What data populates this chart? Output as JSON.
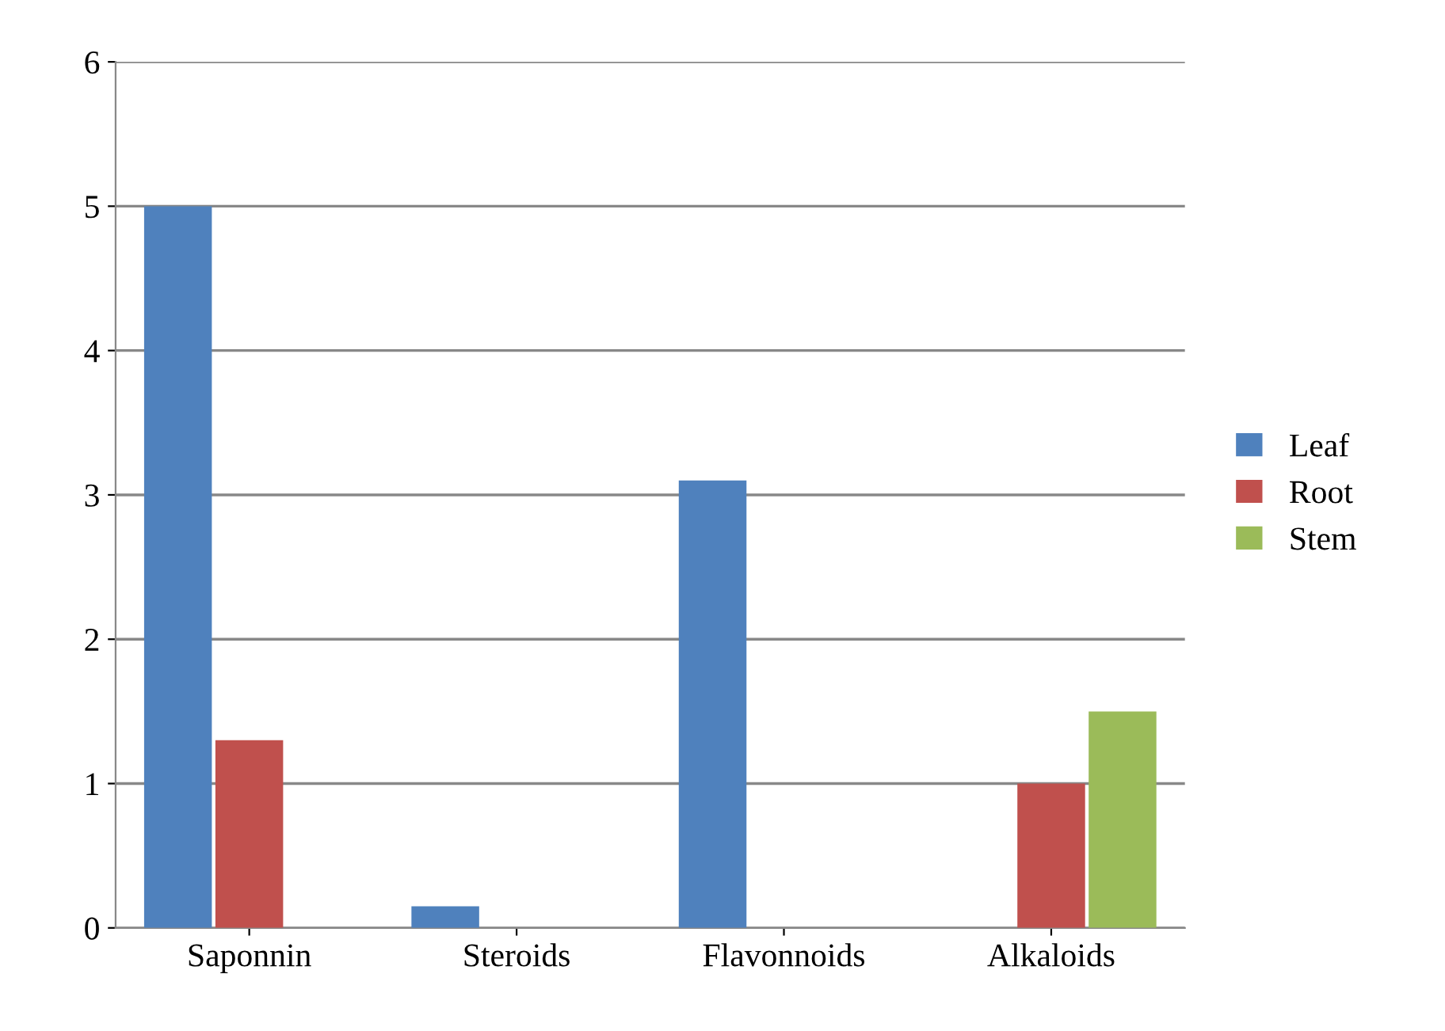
{
  "chart_data": {
    "type": "bar",
    "categories": [
      "Saponnin",
      "Steroids",
      "Flavonnoids",
      "Alkaloids"
    ],
    "series": [
      {
        "name": "Leaf",
        "color": "#4f81bd",
        "values": [
          5.0,
          0.15,
          3.1,
          0
        ]
      },
      {
        "name": "Root",
        "color": "#c0504d",
        "values": [
          1.3,
          0,
          0,
          1.0
        ]
      },
      {
        "name": "Stem",
        "color": "#9bbb59",
        "values": [
          0,
          0,
          0,
          1.5
        ]
      }
    ],
    "ylim": [
      0,
      6
    ],
    "yticks": [
      0,
      1,
      2,
      3,
      4,
      5,
      6
    ],
    "grid": "y",
    "legend": "right"
  }
}
